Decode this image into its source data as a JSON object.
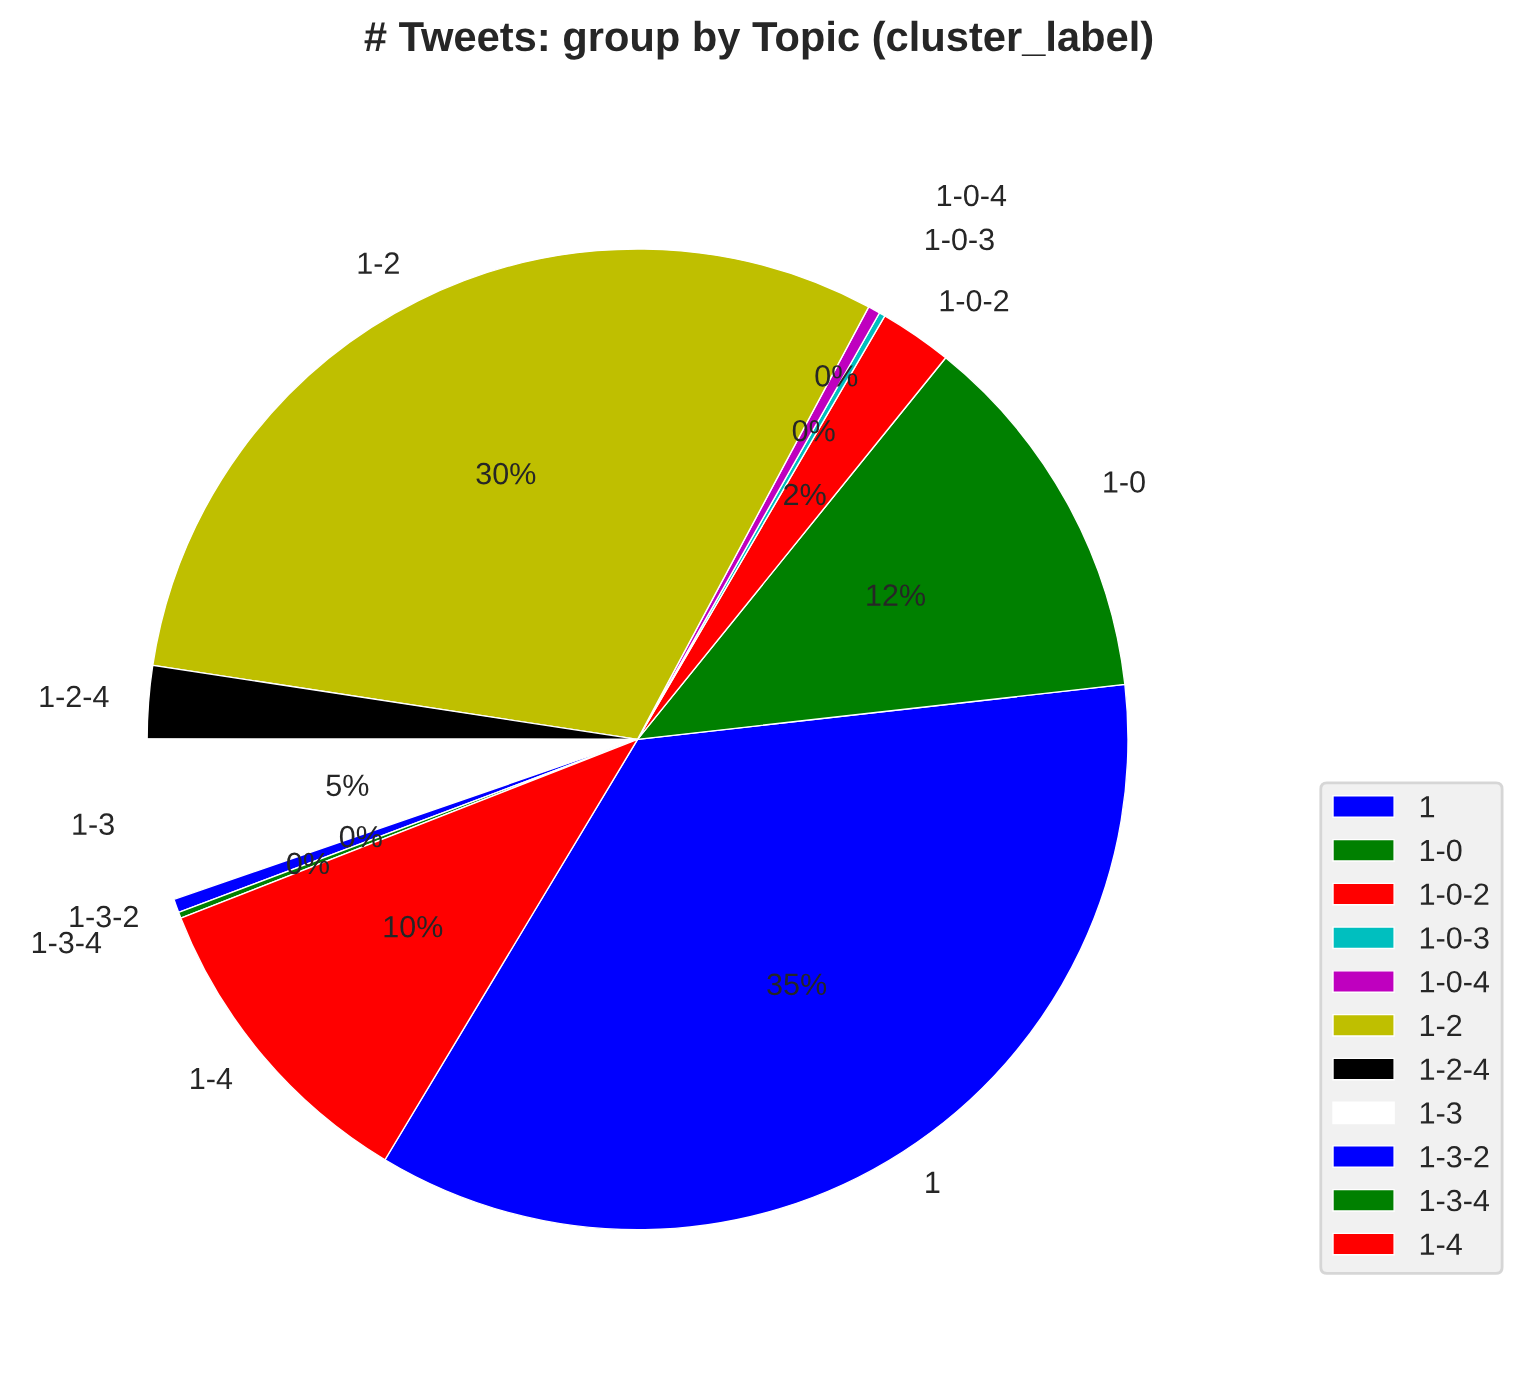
{
  "chart_data": {
    "type": "pie",
    "title": "# Tweets: group by Topic (cluster_label)",
    "categories": [
      "1",
      "1-0",
      "1-0-2",
      "1-0-3",
      "1-0-4",
      "1-2",
      "1-2-4",
      "1-3",
      "1-3-2",
      "1-3-4",
      "1-4"
    ],
    "values": [
      35.4,
      12.4,
      2.4,
      0.2,
      0.4,
      30.4,
      2.4,
      5.3,
      0.45,
      0.2,
      10.45
    ],
    "colors": [
      "#0000ff",
      "#008000",
      "#ff0000",
      "#00bfbf",
      "#bf00bf",
      "#bfbf00",
      "#000000",
      "#ffffff",
      "#0000ff",
      "#008000",
      "#ff0000"
    ],
    "value_labels": [
      "35%",
      "12%",
      "2%",
      "0%",
      "0%",
      "30%",
      null,
      "5%",
      "0%",
      "0%",
      "10%"
    ],
    "legend": "lower right"
  }
}
